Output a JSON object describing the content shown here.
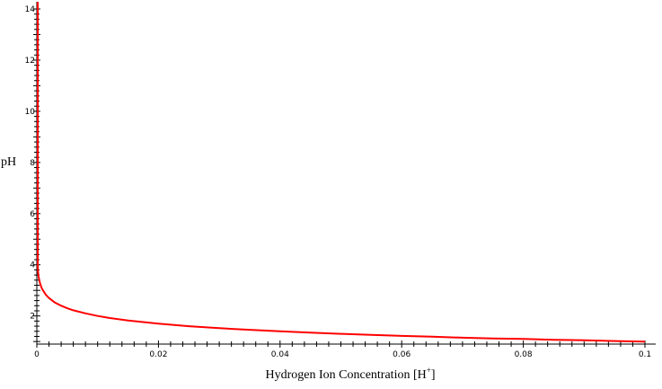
{
  "chart_data": {
    "type": "line",
    "title": "",
    "xlabel": "Hydrogen Ion Concentration [H",
    "xlabel_sup": "+",
    "xlabel_close": "]",
    "ylabel": "pH",
    "xlim": [
      0,
      0.1
    ],
    "ylim": [
      0.9,
      14
    ],
    "x_ticks": [
      0,
      0.02,
      0.04,
      0.06,
      0.08,
      0.1
    ],
    "x_tick_labels": [
      "0",
      "0.02",
      "0.04",
      "0.06",
      "0.08",
      "0.1"
    ],
    "y_ticks": [
      2,
      4,
      6,
      8,
      10,
      12,
      14
    ],
    "y_tick_labels": [
      "2",
      "4",
      "6",
      "8",
      "10",
      "12",
      "14"
    ],
    "grid": false,
    "legend": "none",
    "series": [
      {
        "color": "#ff0000",
        "function": "pH = -log10([H+])",
        "x": [
          1e-07,
          3.16e-07,
          1e-06,
          3.16e-06,
          1e-05,
          3.16e-05,
          0.0001,
          0.0002,
          0.0003,
          0.0005,
          0.00075,
          0.001,
          0.0015,
          0.002,
          0.003,
          0.004,
          0.005,
          0.006,
          0.008,
          0.01,
          0.012,
          0.015,
          0.02,
          0.025,
          0.03,
          0.035,
          0.04,
          0.045,
          0.05,
          0.055,
          0.06,
          0.065,
          0.07,
          0.075,
          0.08,
          0.085,
          0.09,
          0.095,
          0.1
        ],
        "y": [
          7.0,
          6.5,
          6.0,
          5.5,
          5.0,
          4.5,
          4.0,
          3.7,
          3.52,
          3.3,
          3.12,
          3.0,
          2.82,
          2.7,
          2.52,
          2.4,
          2.3,
          2.22,
          2.1,
          2.0,
          1.92,
          1.82,
          1.7,
          1.6,
          1.52,
          1.46,
          1.4,
          1.35,
          1.3,
          1.26,
          1.22,
          1.19,
          1.15,
          1.12,
          1.1,
          1.07,
          1.05,
          1.02,
          1.0
        ]
      }
    ]
  }
}
